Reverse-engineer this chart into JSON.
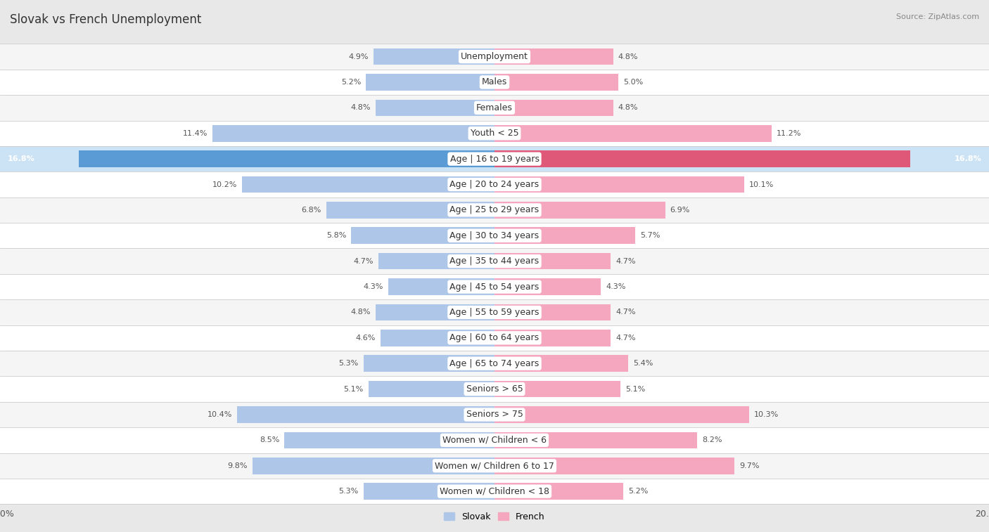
{
  "title": "Slovak vs French Unemployment",
  "source": "Source: ZipAtlas.com",
  "categories": [
    "Unemployment",
    "Males",
    "Females",
    "Youth < 25",
    "Age | 16 to 19 years",
    "Age | 20 to 24 years",
    "Age | 25 to 29 years",
    "Age | 30 to 34 years",
    "Age | 35 to 44 years",
    "Age | 45 to 54 years",
    "Age | 55 to 59 years",
    "Age | 60 to 64 years",
    "Age | 65 to 74 years",
    "Seniors > 65",
    "Seniors > 75",
    "Women w/ Children < 6",
    "Women w/ Children 6 to 17",
    "Women w/ Children < 18"
  ],
  "slovak_values": [
    4.9,
    5.2,
    4.8,
    11.4,
    16.8,
    10.2,
    6.8,
    5.8,
    4.7,
    4.3,
    4.8,
    4.6,
    5.3,
    5.1,
    10.4,
    8.5,
    9.8,
    5.3
  ],
  "french_values": [
    4.8,
    5.0,
    4.8,
    11.2,
    16.8,
    10.1,
    6.9,
    5.7,
    4.7,
    4.3,
    4.7,
    4.7,
    5.4,
    5.1,
    10.3,
    8.2,
    9.7,
    5.2
  ],
  "slovak_color": "#aec6e8",
  "french_color": "#f4a7bf",
  "slovak_highlight_color": "#5b9bd5",
  "french_highlight_color": "#e05878",
  "row_even_color": "#f5f5f5",
  "row_odd_color": "#ffffff",
  "highlight_row_color": "#cce3f5",
  "highlight_row": 4,
  "axis_max": 20.0,
  "bar_height": 0.65,
  "label_fontsize": 9,
  "title_fontsize": 12,
  "value_fontsize": 8,
  "bg_color": "#e8e8e8"
}
